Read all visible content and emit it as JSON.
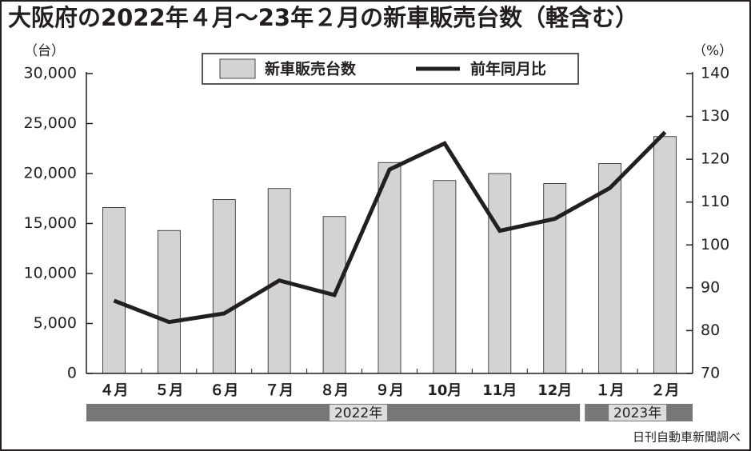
{
  "chart_data": {
    "type": "bar",
    "title": "大阪府の2022年４月～23年２月の新車販売台数（軽含む）",
    "y_unit": "（台）",
    "y2_unit": "（%）",
    "categories": [
      "４月",
      "５月",
      "６月",
      "７月",
      "８月",
      "９月",
      "10月",
      "11月",
      "12月",
      "１月",
      "２月"
    ],
    "year_labels": [
      "2022年",
      "2023年"
    ],
    "series": [
      {
        "name": "新車販売台数",
        "type": "bar",
        "color": "#d3d3d3",
        "values": [
          16600,
          14300,
          17400,
          18500,
          15700,
          21100,
          19300,
          20000,
          19000,
          21000,
          23700
        ]
      },
      {
        "name": "前年同月比",
        "type": "line",
        "axis": "y2",
        "color": "#231f20",
        "values": [
          87,
          82,
          84,
          91.7,
          88.3,
          117.6,
          123.7,
          103.3,
          106.1,
          113.3,
          126.3
        ]
      }
    ],
    "ylim": [
      0,
      30000
    ],
    "yticks": [
      0,
      {
        "value": 5000,
        "label": "5,000"
      },
      {
        "value": 10000,
        "label": "10,000"
      },
      {
        "value": 15000,
        "label": "15,000"
      },
      {
        "value": 20000,
        "label": "20,000"
      },
      {
        "value": 25000,
        "label": "25,000"
      },
      {
        "value": 30000,
        "label": "30,000"
      }
    ],
    "y2lim": [
      70,
      140
    ],
    "y2ticks": [
      70,
      80,
      90,
      100,
      110,
      120,
      130,
      140
    ],
    "source": "日刊自動車新聞調べ"
  }
}
